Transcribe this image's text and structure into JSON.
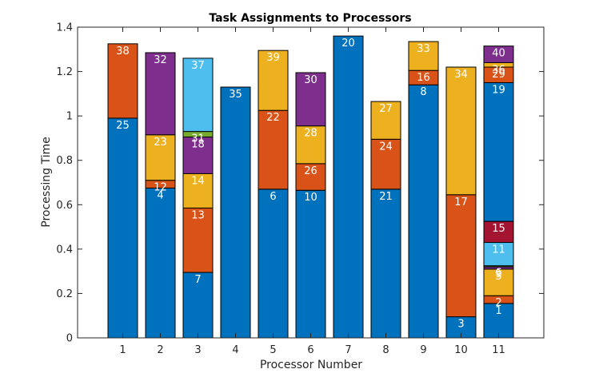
{
  "chart_data": {
    "type": "bar",
    "stacked": true,
    "title": "Task Assignments to Processors",
    "xlabel": "Processor Number",
    "ylabel": "Processing Time",
    "ylim": [
      0,
      1.4
    ],
    "yticks": [
      0,
      0.2,
      0.4,
      0.6,
      0.8,
      1,
      1.2,
      1.4
    ],
    "ytick_labels": [
      "0",
      "0.2",
      "0.4",
      "0.6",
      "0.8",
      "1",
      "1.2",
      "1.4"
    ],
    "categories": [
      "1",
      "2",
      "3",
      "4",
      "5",
      "6",
      "7",
      "8",
      "9",
      "10",
      "11"
    ],
    "colors": [
      "#0072BD",
      "#D95319",
      "#EDB120",
      "#7E2F8E",
      "#77AC30",
      "#4DBEEE",
      "#A2142F"
    ],
    "stacks": [
      {
        "processor": "1",
        "segments": [
          {
            "task": "25",
            "value": 0.99
          },
          {
            "task": "38",
            "value": 0.335
          }
        ]
      },
      {
        "processor": "2",
        "segments": [
          {
            "task": "4",
            "value": 0.675
          },
          {
            "task": "12",
            "value": 0.035
          },
          {
            "task": "23",
            "value": 0.205
          },
          {
            "task": "32",
            "value": 0.37
          }
        ]
      },
      {
        "processor": "3",
        "segments": [
          {
            "task": "7",
            "value": 0.295
          },
          {
            "task": "13",
            "value": 0.29
          },
          {
            "task": "14",
            "value": 0.155
          },
          {
            "task": "18",
            "value": 0.165
          },
          {
            "task": "31",
            "value": 0.025
          },
          {
            "task": "37",
            "value": 0.33
          }
        ]
      },
      {
        "processor": "4",
        "segments": [
          {
            "task": "35",
            "value": 1.13
          }
        ]
      },
      {
        "processor": "5",
        "segments": [
          {
            "task": "6",
            "value": 0.67
          },
          {
            "task": "22",
            "value": 0.355
          },
          {
            "task": "39",
            "value": 0.27
          }
        ]
      },
      {
        "processor": "6",
        "segments": [
          {
            "task": "10",
            "value": 0.665
          },
          {
            "task": "26",
            "value": 0.12
          },
          {
            "task": "28",
            "value": 0.17
          },
          {
            "task": "30",
            "value": 0.24
          }
        ]
      },
      {
        "processor": "7",
        "segments": [
          {
            "task": "20",
            "value": 1.36
          }
        ]
      },
      {
        "processor": "8",
        "segments": [
          {
            "task": "21",
            "value": 0.67
          },
          {
            "task": "24",
            "value": 0.225
          },
          {
            "task": "27",
            "value": 0.17
          }
        ]
      },
      {
        "processor": "9",
        "segments": [
          {
            "task": "8",
            "value": 1.14
          },
          {
            "task": "16",
            "value": 0.065
          },
          {
            "task": "33",
            "value": 0.13
          }
        ]
      },
      {
        "processor": "10",
        "segments": [
          {
            "task": "3",
            "value": 0.095
          },
          {
            "task": "17",
            "value": 0.55
          },
          {
            "task": "34",
            "value": 0.575
          }
        ]
      },
      {
        "processor": "11",
        "segments": [
          {
            "task": "1",
            "value": 0.155
          },
          {
            "task": "2",
            "value": 0.035
          },
          {
            "task": "5",
            "value": 0.12
          },
          {
            "task": "9",
            "value": 0.01
          },
          {
            "task": "6",
            "value": 0.005
          },
          {
            "task": "11",
            "value": 0.105
          },
          {
            "task": "15",
            "value": 0.095
          },
          {
            "task": "19",
            "value": 0.625
          },
          {
            "task": "29",
            "value": 0.07
          },
          {
            "task": "36",
            "value": 0.02
          },
          {
            "task": "40",
            "value": 0.075
          }
        ]
      }
    ]
  }
}
